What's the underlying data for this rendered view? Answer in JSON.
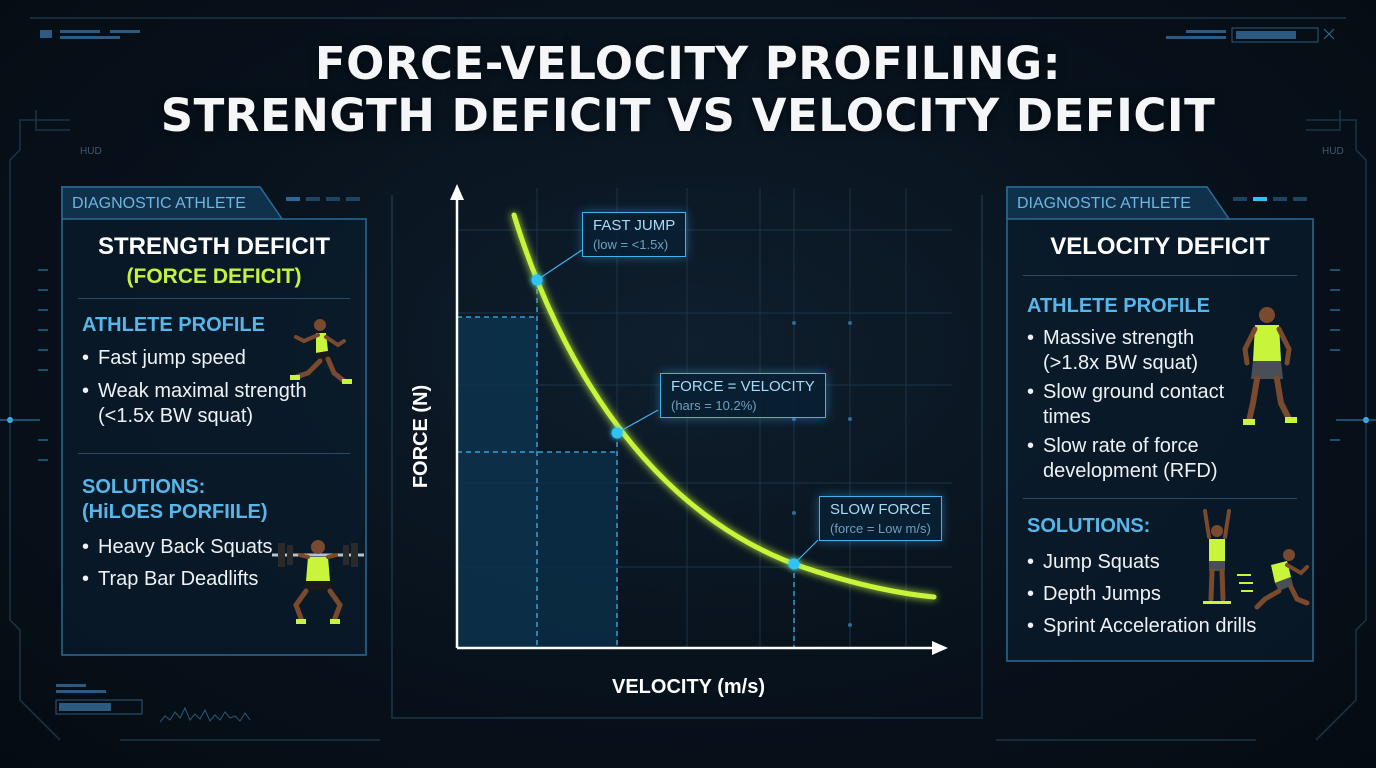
{
  "title": {
    "line1": "FORCE-VELOCITY PROFILING:",
    "line2": "STRENGTH DEFICIT VS VELOCITY DEFICIT"
  },
  "hud_labels": {
    "left": "HUD",
    "right": "HUD"
  },
  "left_panel": {
    "tab": "DIAGNOSTIC ATHLETE",
    "heading": "STRENGTH DEFICIT",
    "subheading": "(FORCE DEFICIT)",
    "profile_heading": "ATHLETE PROFILE",
    "profile_items": [
      {
        "line1": "Fast jump speed"
      },
      {
        "line1": "Weak maximal strength",
        "line2": "(<1.5x BW squat)"
      }
    ],
    "solutions_heading_line1": "SOLUTIONS:",
    "solutions_heading_line2": "(HiLOES PORFIILE)",
    "solutions": [
      "Heavy Back Squats",
      "Trap Bar Deadlifts"
    ],
    "icons": [
      "sprinter-icon",
      "squat-barbell-icon"
    ]
  },
  "right_panel": {
    "tab": "DIAGNOSTIC ATHLETE",
    "heading": "VELOCITY DEFICIT",
    "profile_heading": "ATHLETE PROFILE",
    "profile_items": [
      {
        "line1": "Massive strength",
        "line2": "(>1.8x BW squat)"
      },
      {
        "line1": "Slow ground contact",
        "line2": "times"
      },
      {
        "line1": "Slow rate of force",
        "line2": "development (RFD)"
      }
    ],
    "solutions_heading": "SOLUTIONS:",
    "solutions": [
      "Jump Squats",
      "Depth Jumps",
      "Sprint Acceleration drills"
    ],
    "icons": [
      "standing-athlete-icon",
      "jump-athlete-icon",
      "sprint-athlete-icon"
    ]
  },
  "chart": {
    "x_axis_title": "VELOCITY (m/s)",
    "y_axis_title": "FORCE (N)",
    "callouts": [
      {
        "title": "FAST JUMP",
        "subtitle": "(low = <1.5x)"
      },
      {
        "title": "FORCE = VELOCITY",
        "subtitle": "(hars = 10.2%)"
      },
      {
        "title": "SLOW FORCE",
        "subtitle": "(force = Low m/s)"
      }
    ],
    "colors": {
      "curve": "#c8f53a",
      "points": "#2fc3f5",
      "grid": "#1c3448",
      "fill": "#0d3550"
    }
  }
}
